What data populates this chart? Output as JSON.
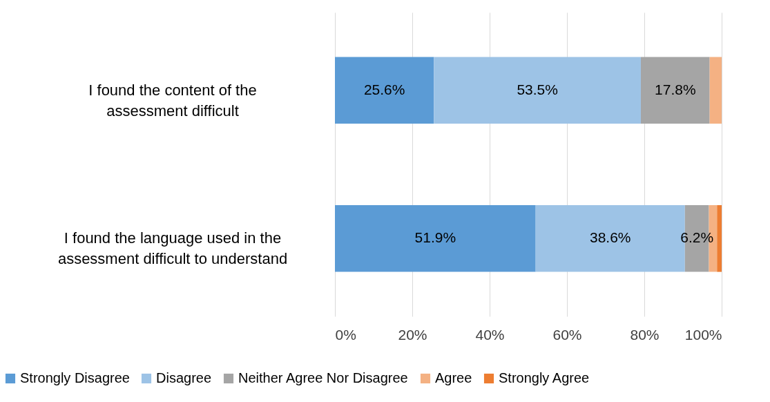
{
  "chart_data": {
    "type": "bar",
    "orientation": "horizontal",
    "stacked": true,
    "categories": [
      "I found the content of the assessment difficult",
      "I found the language used in the assessment difficult to understand"
    ],
    "series": [
      {
        "name": "Strongly Disagree",
        "color": "#5b9bd5",
        "values": [
          25.6,
          51.9
        ],
        "value_labels": [
          "25.6%",
          "51.9%"
        ]
      },
      {
        "name": "Disagree",
        "color": "#9dc3e6",
        "values": [
          53.5,
          38.6
        ],
        "value_labels": [
          "53.5%",
          "38.6%"
        ]
      },
      {
        "name": "Neither Agree Nor Disagree",
        "color": "#a5a5a5",
        "values": [
          17.8,
          6.2
        ],
        "value_labels": [
          "17.8%",
          "6.2%"
        ]
      },
      {
        "name": "Agree",
        "color": "#f4b183",
        "values": [
          3.1,
          2.1
        ],
        "value_labels": [
          null,
          null
        ]
      },
      {
        "name": "Strongly Agree",
        "color": "#ed7d31",
        "values": [
          0,
          1.2
        ],
        "value_labels": [
          null,
          null
        ]
      }
    ],
    "xlim": [
      0,
      100
    ],
    "xticks": [
      {
        "value": 0,
        "label": "0%"
      },
      {
        "value": 20,
        "label": "20%"
      },
      {
        "value": 40,
        "label": "40%"
      },
      {
        "value": 60,
        "label": "60%"
      },
      {
        "value": 80,
        "label": "80%"
      },
      {
        "value": 100,
        "label": "100%"
      }
    ],
    "grid": "x",
    "legend": "bottom"
  }
}
